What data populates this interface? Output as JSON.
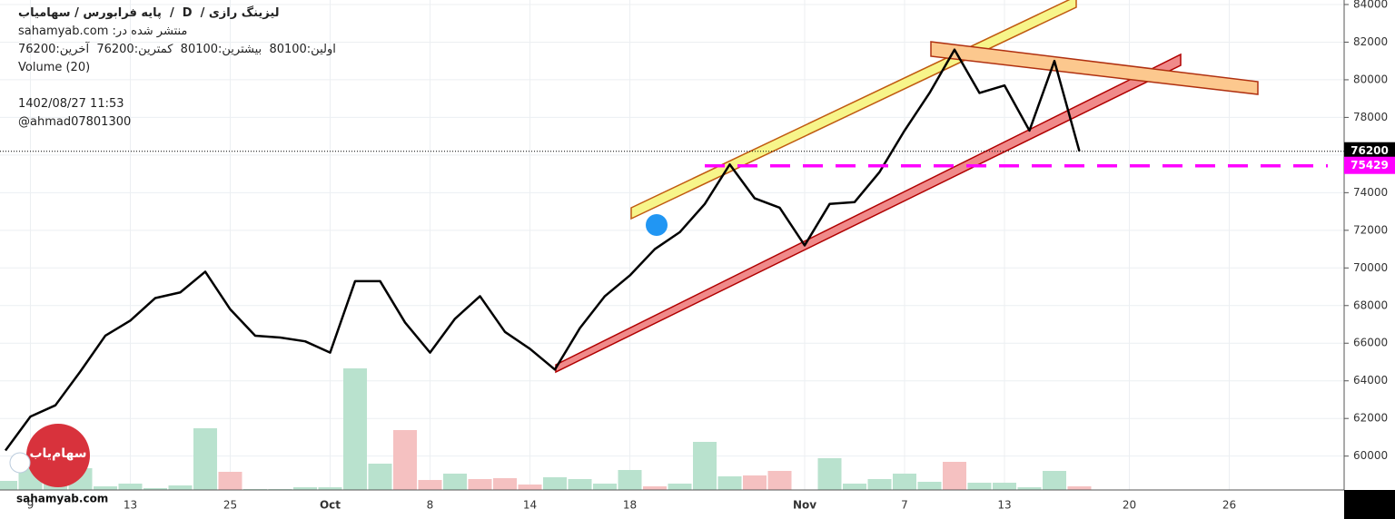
{
  "header": {
    "title": "لیزینگ رازی /  D  /  پایه فرابورس / سهامیاب",
    "published": "منتشر شده در: sahamyab.com",
    "ohlc": "اولین:80100  بیشترین:80100  کمترین:76200  آخرین:76200",
    "datetime": "1402/08/27 11:53",
    "author": "@ahmad07801300"
  },
  "watermark": {
    "site": "sahamyab.com",
    "logo": "سهام‌یاب"
  },
  "chart_data": {
    "type": "line",
    "color": "#000000",
    "categories": [
      null,
      "9",
      null,
      null,
      null,
      "13",
      null,
      null,
      null,
      "25",
      null,
      null,
      null,
      "Oct",
      null,
      null,
      null,
      "8",
      null,
      null,
      null,
      "14",
      null,
      null,
      null,
      "18",
      null,
      null,
      null,
      null,
      null,
      null,
      "Nov",
      null,
      null,
      null,
      "7",
      null,
      null,
      null,
      "13",
      null,
      null,
      null,
      null,
      "20",
      null,
      null,
      null,
      "26",
      null
    ],
    "values": [
      60300,
      62100,
      62700,
      64500,
      66400,
      67200,
      68400,
      68700,
      69800,
      67800,
      66400,
      66300,
      66100,
      65500,
      69300,
      69300,
      67100,
      65500,
      67300,
      68500,
      66600,
      65700,
      64600,
      66800,
      68500,
      69600,
      71000,
      71900,
      73400,
      75500,
      73700,
      73200,
      71200,
      73400,
      73500,
      75100,
      77300,
      79300,
      81600,
      79300,
      79700,
      77300,
      81000,
      76200,
      null,
      null,
      null,
      null,
      null,
      null,
      null
    ],
    "volume": {
      "name": "Volume (20)",
      "values": [
        10,
        25,
        18,
        24,
        4,
        7,
        2,
        5,
        68,
        20,
        1,
        1,
        3,
        3,
        134,
        29,
        66,
        11,
        18,
        12,
        13,
        6,
        14,
        12,
        7,
        22,
        4,
        7,
        53,
        15,
        16,
        21,
        0,
        35,
        7,
        12,
        18,
        9,
        31,
        8,
        8,
        3,
        21,
        4,
        null,
        null,
        null,
        null,
        null,
        null,
        null
      ],
      "colors": [
        "#b9e2ce",
        "#b9e2ce",
        "#b9e2ce",
        "#b9e2ce",
        "#b9e2ce",
        "#b9e2ce",
        "#b9e2ce",
        "#b9e2ce",
        "#b9e2ce",
        "#f5c1c1",
        "#b9e2ce",
        "#b9e2ce",
        "#b9e2ce",
        "#b9e2ce",
        "#b9e2ce",
        "#b9e2ce",
        "#f5c1c1",
        "#f5c1c1",
        "#b9e2ce",
        "#f5c1c1",
        "#f5c1c1",
        "#f5c1c1",
        "#b9e2ce",
        "#b9e2ce",
        "#b9e2ce",
        "#b9e2ce",
        "#f5c1c1",
        "#b9e2ce",
        "#b9e2ce",
        "#b9e2ce",
        "#f5c1c1",
        "#f5c1c1",
        "#b9e2ce",
        "#b9e2ce",
        "#b9e2ce",
        "#b9e2ce",
        "#b9e2ce",
        "#b9e2ce",
        "#f5c1c1",
        "#b9e2ce",
        "#b9e2ce",
        "#b9e2ce",
        "#b9e2ce",
        "#f5c1c1",
        null,
        null,
        null,
        null,
        null,
        null,
        null
      ]
    },
    "ylim": [
      58200,
      84240
    ],
    "yticks": [
      60000,
      62000,
      64000,
      66000,
      68000,
      70000,
      72000,
      74000,
      76000,
      78000,
      80000,
      82000,
      84000
    ],
    "grid": true,
    "last_price": 76200,
    "level": {
      "value": 75429,
      "color": "#ff00ff"
    }
  }
}
